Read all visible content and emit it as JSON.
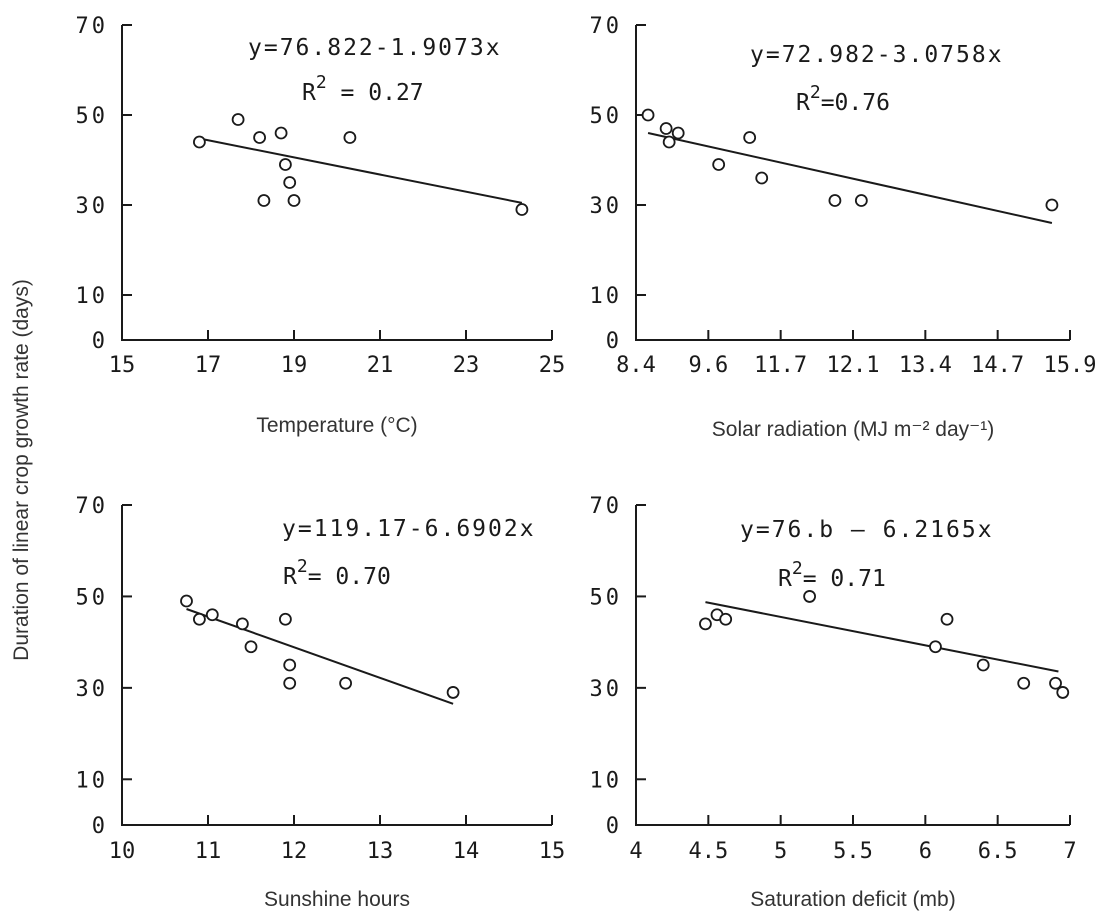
{
  "shared_ylabel": "Duration of linear crop growth rate (days)",
  "chart_data": [
    {
      "type": "scatter",
      "xlabel": "Temperature (°C)",
      "x_ticks": [
        "15",
        "17",
        "19",
        "21",
        "23",
        "25"
      ],
      "x_tick_values": [
        15,
        17,
        19,
        21,
        23,
        25
      ],
      "xlim": [
        15,
        25
      ],
      "y_ticks": [
        "70",
        "50",
        "30",
        "10",
        "0"
      ],
      "y_tick_values": [
        70,
        50,
        30,
        10,
        0
      ],
      "ylim": [
        0,
        70
      ],
      "equation": "y=76.822-1.9073x",
      "r2_prefix": "R",
      "r2_exp": "2",
      "r2_value": " = 0.27",
      "trendline": {
        "intercept": 76.822,
        "slope": -1.9073,
        "x_range": [
          16.8,
          24.3
        ]
      },
      "points": [
        {
          "x": 16.8,
          "y": 44
        },
        {
          "x": 17.7,
          "y": 49
        },
        {
          "x": 18.2,
          "y": 45
        },
        {
          "x": 18.3,
          "y": 31
        },
        {
          "x": 18.7,
          "y": 46
        },
        {
          "x": 18.8,
          "y": 39
        },
        {
          "x": 18.9,
          "y": 35
        },
        {
          "x": 19.0,
          "y": 31
        },
        {
          "x": 20.3,
          "y": 45
        },
        {
          "x": 24.3,
          "y": 29
        }
      ]
    },
    {
      "type": "scatter",
      "xlabel": "Solar radiation (MJ m⁻² day⁻¹)",
      "x_ticks": [
        "8.4",
        "9.6",
        "11.7",
        "12.1",
        "13.4",
        "14.7",
        "15.9"
      ],
      "x_tick_values": [
        8.4,
        9.6,
        11.7,
        12.1,
        13.4,
        14.7,
        15.9
      ],
      "equation": "y=72.982-3.0758x",
      "r2_prefix": "R",
      "r2_exp": "2",
      "r2_value": "=0.76",
      "y_ticks": [
        "70",
        "50",
        "30",
        "10",
        "0"
      ],
      "y_tick_values": [
        70,
        50,
        30,
        10,
        0
      ],
      "ylim": [
        0,
        70
      ],
      "trendline": {
        "y_start": 46,
        "y_end": 26
      },
      "points": [
        {
          "x": 8.6,
          "y": 50
        },
        {
          "x": 8.9,
          "y": 47
        },
        {
          "x": 8.95,
          "y": 44
        },
        {
          "x": 9.1,
          "y": 46
        },
        {
          "x": 9.9,
          "y": 39
        },
        {
          "x": 10.8,
          "y": 45
        },
        {
          "x": 11.15,
          "y": 36
        },
        {
          "x": 12.0,
          "y": 31
        },
        {
          "x": 12.25,
          "y": 31
        },
        {
          "x": 15.6,
          "y": 30
        }
      ]
    },
    {
      "type": "scatter",
      "xlabel": "Sunshine hours",
      "x_ticks": [
        "10",
        "11",
        "12",
        "13",
        "14",
        "15"
      ],
      "x_tick_values": [
        10,
        11,
        12,
        13,
        14,
        15
      ],
      "xlim": [
        10,
        15
      ],
      "y_ticks": [
        "70",
        "50",
        "30",
        "10",
        "0"
      ],
      "y_tick_values": [
        70,
        50,
        30,
        10,
        0
      ],
      "ylim": [
        0,
        70
      ],
      "equation": "y=119.17-6.6902x",
      "r2_prefix": "R",
      "r2_exp": "2",
      "r2_value": "= 0.70",
      "trendline": {
        "intercept": 119.17,
        "slope": -6.6902,
        "x_range": [
          10.75,
          13.85
        ]
      },
      "points": [
        {
          "x": 10.75,
          "y": 49
        },
        {
          "x": 10.9,
          "y": 45
        },
        {
          "x": 11.05,
          "y": 46
        },
        {
          "x": 11.4,
          "y": 44
        },
        {
          "x": 11.5,
          "y": 39
        },
        {
          "x": 11.9,
          "y": 45
        },
        {
          "x": 11.95,
          "y": 35
        },
        {
          "x": 11.95,
          "y": 31
        },
        {
          "x": 12.6,
          "y": 31
        },
        {
          "x": 13.85,
          "y": 29
        }
      ]
    },
    {
      "type": "scatter",
      "xlabel": "Saturation deficit (mb)",
      "x_ticks": [
        "4",
        "4.5",
        "5",
        "5.5",
        "6",
        "6.5",
        "7"
      ],
      "x_tick_values": [
        4,
        4.5,
        5,
        5.5,
        6,
        6.5,
        7
      ],
      "xlim": [
        4,
        7
      ],
      "y_ticks": [
        "70",
        "50",
        "30",
        "10",
        "0"
      ],
      "y_tick_values": [
        70,
        50,
        30,
        10,
        0
      ],
      "ylim": [
        0,
        70
      ],
      "equation": "y=76.b – 6.2165x",
      "r2_prefix": "R",
      "r2_exp": "2",
      "r2_value": "= 0.71",
      "trendline": {
        "intercept": 76.6,
        "slope": -6.2165,
        "x_range": [
          4.48,
          6.92
        ]
      },
      "points": [
        {
          "x": 4.48,
          "y": 44
        },
        {
          "x": 4.56,
          "y": 46
        },
        {
          "x": 4.62,
          "y": 45
        },
        {
          "x": 5.2,
          "y": 50
        },
        {
          "x": 6.07,
          "y": 39
        },
        {
          "x": 6.15,
          "y": 45
        },
        {
          "x": 6.4,
          "y": 35
        },
        {
          "x": 6.68,
          "y": 31
        },
        {
          "x": 6.9,
          "y": 31
        },
        {
          "x": 6.95,
          "y": 29
        }
      ]
    }
  ]
}
